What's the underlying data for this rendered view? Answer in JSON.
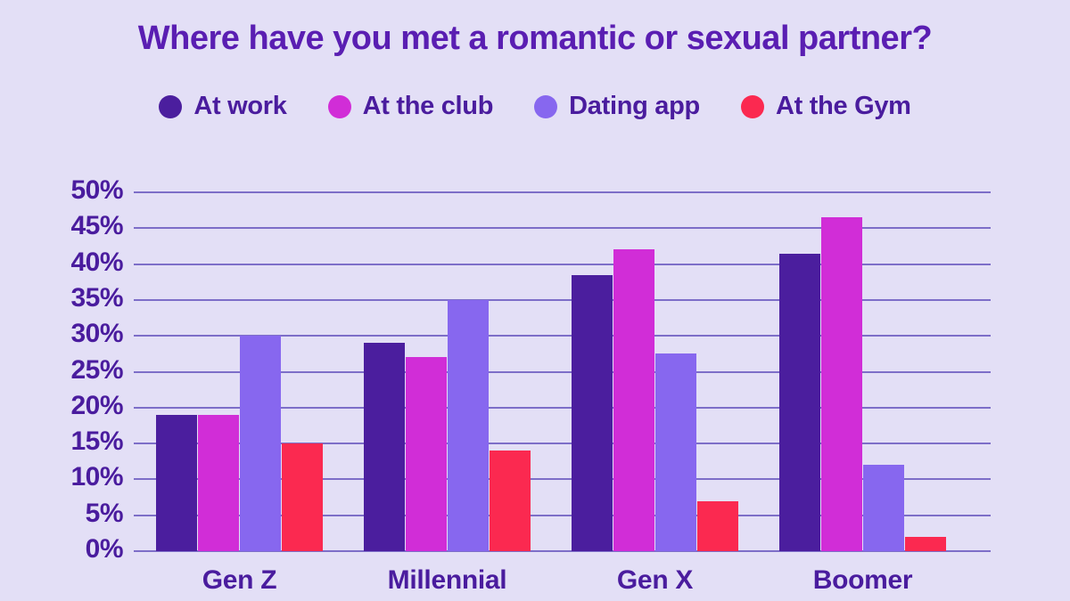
{
  "colors": {
    "background": "#E3DFF6",
    "gridline": "#7D6EC8",
    "title_text": "#5A1EB2",
    "label_text": "#4A1C9E"
  },
  "chart_data": {
    "type": "bar",
    "title": "Where have you met a romantic or sexual partner?",
    "categories": [
      "Gen Z",
      "Millennial",
      "Gen X",
      "Boomer"
    ],
    "series": [
      {
        "name": "At work",
        "color": "#4B1E9E",
        "values": [
          19,
          29,
          38.5,
          41.5
        ]
      },
      {
        "name": "At the club",
        "color": "#D12DD7",
        "values": [
          19,
          27,
          42,
          46.5
        ]
      },
      {
        "name": "Dating app",
        "color": "#8767EF",
        "values": [
          30,
          35,
          27.5,
          12
        ]
      },
      {
        "name": "At the Gym",
        "color": "#FB2950",
        "values": [
          15,
          14,
          7,
          2
        ]
      }
    ],
    "ylim": [
      0,
      50
    ],
    "ytick_step": 5,
    "ytick_suffix": "%",
    "grid": true,
    "legend_position": "top"
  }
}
